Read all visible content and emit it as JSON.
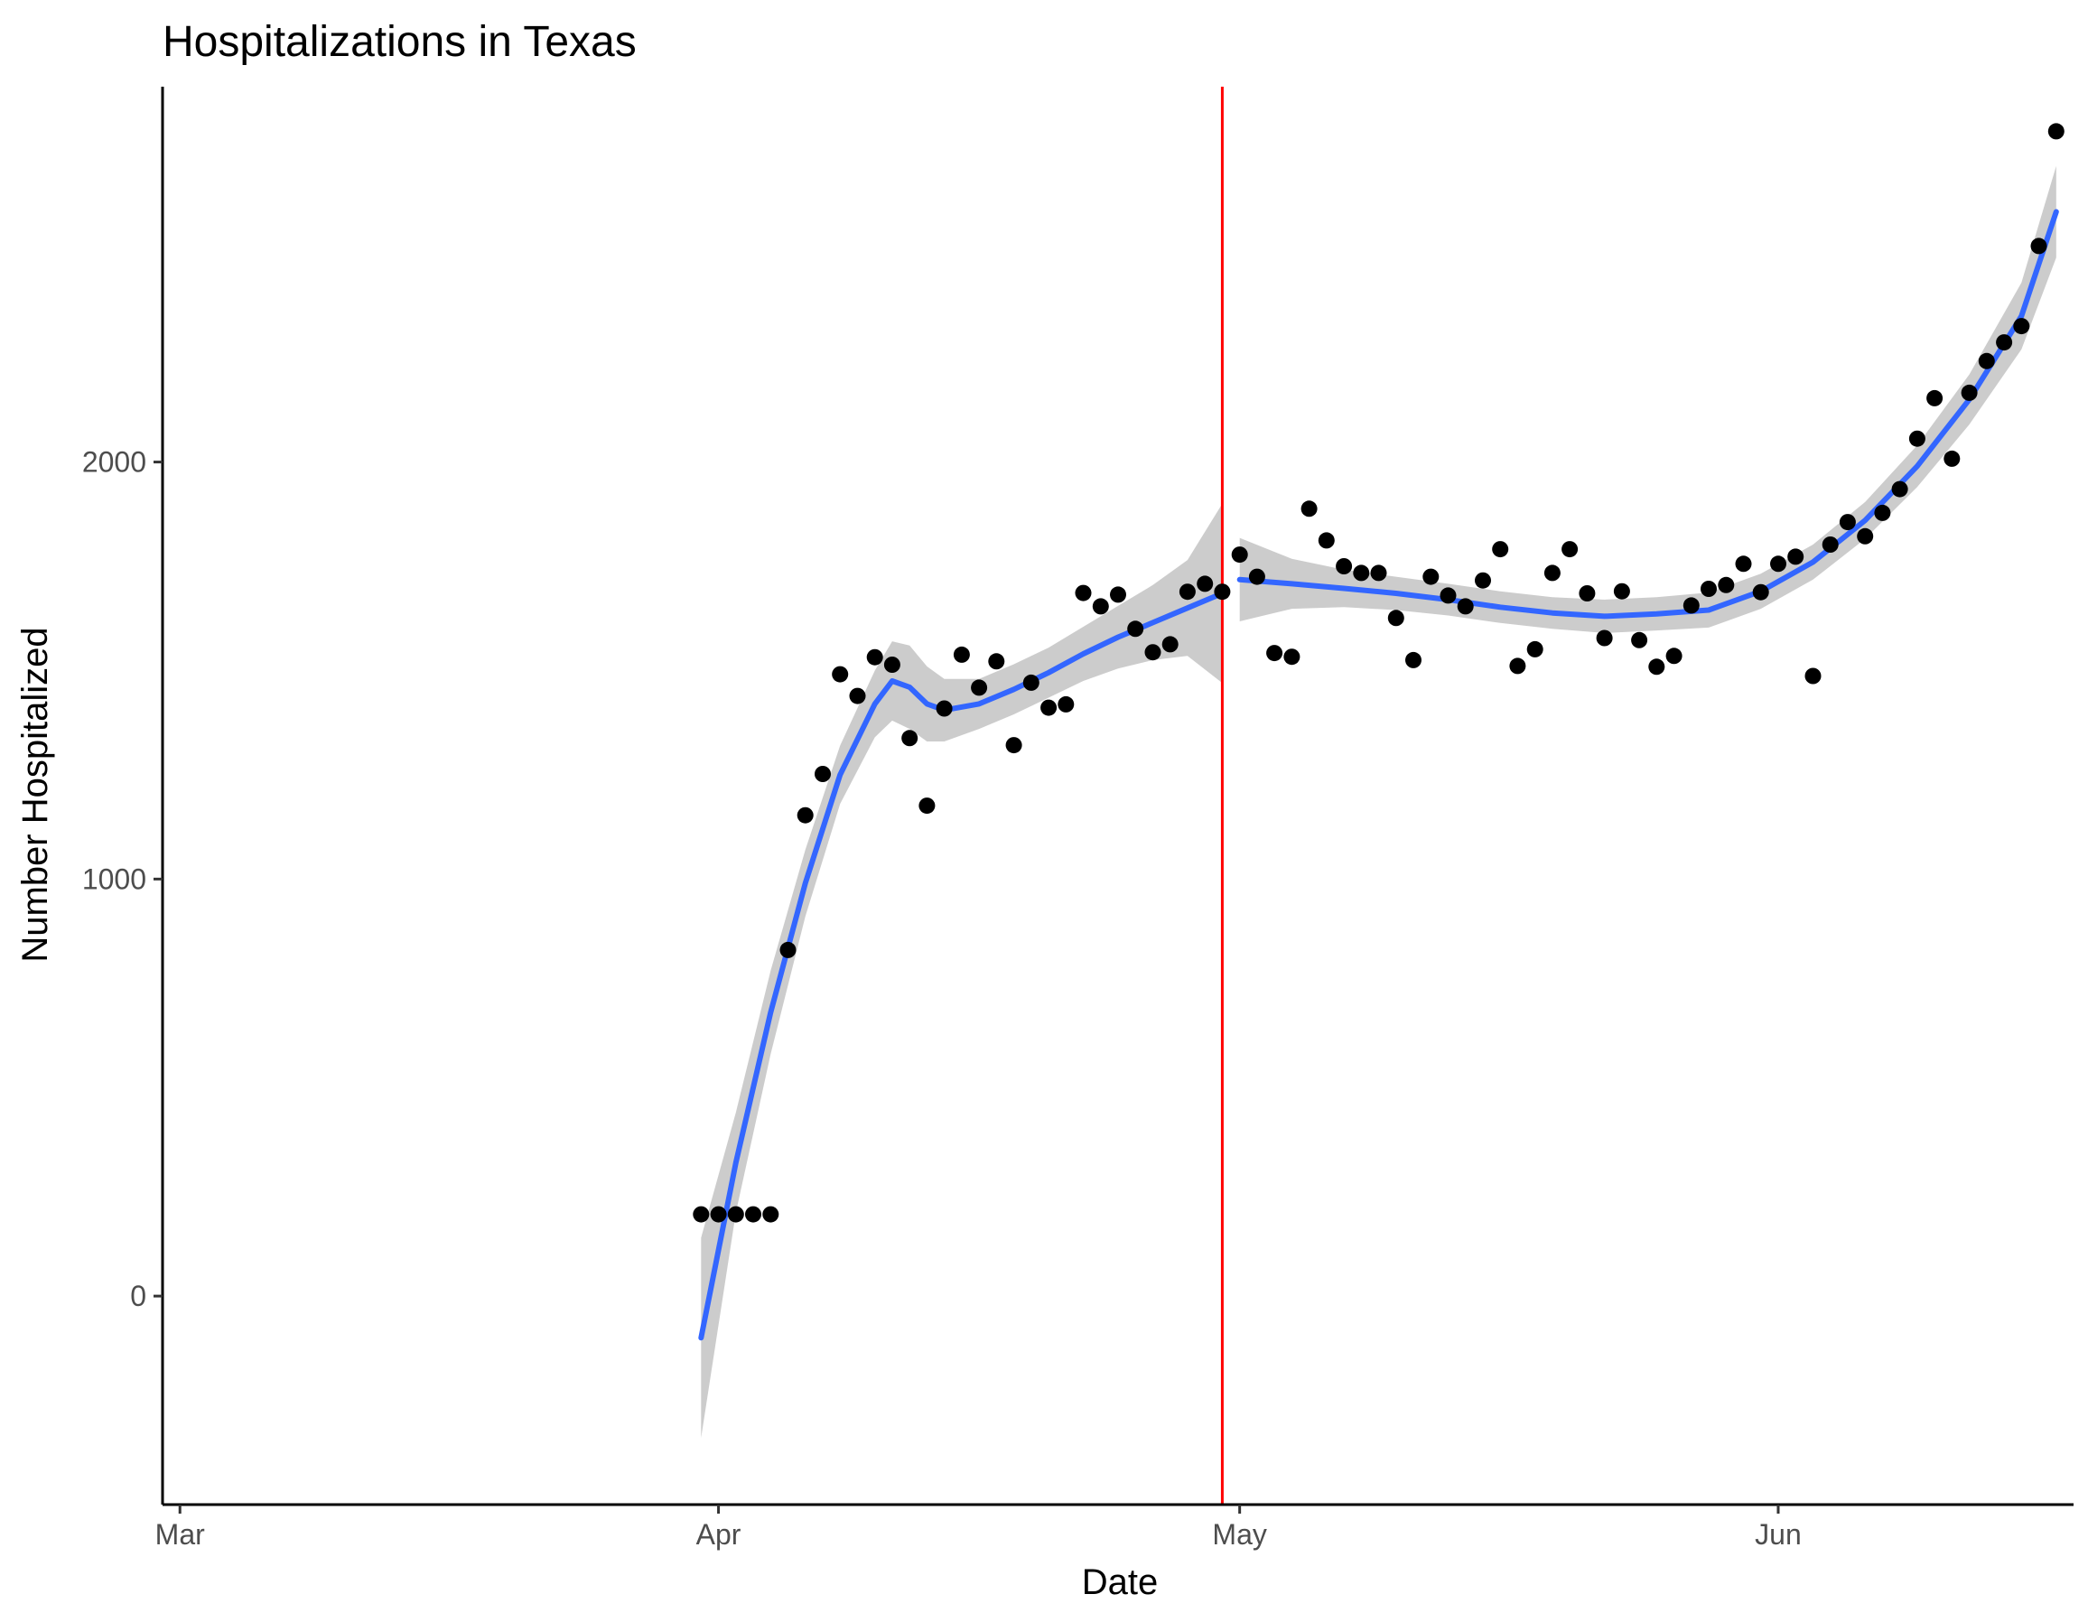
{
  "chart_data": {
    "type": "scatter",
    "title": "Hospitalizations in Texas",
    "xlabel": "Date",
    "ylabel": "Number Hospitalized",
    "x_scale": "date",
    "xlim": [
      "2020-02-29",
      "2020-06-18"
    ],
    "ylim": [
      -500,
      2900
    ],
    "x_ticks": [
      {
        "label": "Mar",
        "value": "2020-03-01"
      },
      {
        "label": "Apr",
        "value": "2020-04-01"
      },
      {
        "label": "May",
        "value": "2020-05-01"
      },
      {
        "label": "Jun",
        "value": "2020-06-01"
      }
    ],
    "y_ticks": [
      0,
      1000,
      2000
    ],
    "grid": false,
    "reference_line": {
      "type": "vertical",
      "x": "2020-04-30",
      "color": "#ff0000"
    },
    "colors": {
      "points": "#000000",
      "smooth": "#3366ff",
      "band": "#cccccc",
      "reference": "#ff0000",
      "axis": "#000000"
    },
    "series": [
      {
        "role": "points",
        "points": [
          {
            "x": "2020-03-31",
            "y": 196
          },
          {
            "x": "2020-04-01",
            "y": 196
          },
          {
            "x": "2020-04-02",
            "y": 196
          },
          {
            "x": "2020-04-03",
            "y": 196
          },
          {
            "x": "2020-04-04",
            "y": 196
          },
          {
            "x": "2020-04-05",
            "y": 830
          },
          {
            "x": "2020-04-06",
            "y": 1153
          },
          {
            "x": "2020-04-07",
            "y": 1252
          },
          {
            "x": "2020-04-08",
            "y": 1491
          },
          {
            "x": "2020-04-09",
            "y": 1439
          },
          {
            "x": "2020-04-10",
            "y": 1532
          },
          {
            "x": "2020-04-11",
            "y": 1514
          },
          {
            "x": "2020-04-12",
            "y": 1338
          },
          {
            "x": "2020-04-13",
            "y": 1176
          },
          {
            "x": "2020-04-14",
            "y": 1409
          },
          {
            "x": "2020-04-15",
            "y": 1538
          },
          {
            "x": "2020-04-16",
            "y": 1459
          },
          {
            "x": "2020-04-17",
            "y": 1522
          },
          {
            "x": "2020-04-18",
            "y": 1321
          },
          {
            "x": "2020-04-19",
            "y": 1471
          },
          {
            "x": "2020-04-20",
            "y": 1411
          },
          {
            "x": "2020-04-21",
            "y": 1419
          },
          {
            "x": "2020-04-22",
            "y": 1686
          },
          {
            "x": "2020-04-23",
            "y": 1654
          },
          {
            "x": "2020-04-24",
            "y": 1682
          },
          {
            "x": "2020-04-25",
            "y": 1600
          },
          {
            "x": "2020-04-26",
            "y": 1544
          },
          {
            "x": "2020-04-27",
            "y": 1563
          },
          {
            "x": "2020-04-28",
            "y": 1689
          },
          {
            "x": "2020-04-29",
            "y": 1708
          },
          {
            "x": "2020-04-30",
            "y": 1689
          },
          {
            "x": "2020-05-01",
            "y": 1778
          },
          {
            "x": "2020-05-02",
            "y": 1725
          },
          {
            "x": "2020-05-03",
            "y": 1542
          },
          {
            "x": "2020-05-04",
            "y": 1533
          },
          {
            "x": "2020-05-05",
            "y": 1888
          },
          {
            "x": "2020-05-06",
            "y": 1812
          },
          {
            "x": "2020-05-07",
            "y": 1750
          },
          {
            "x": "2020-05-08",
            "y": 1734
          },
          {
            "x": "2020-05-09",
            "y": 1734
          },
          {
            "x": "2020-05-10",
            "y": 1626
          },
          {
            "x": "2020-05-11",
            "y": 1525
          },
          {
            "x": "2020-05-12",
            "y": 1725
          },
          {
            "x": "2020-05-13",
            "y": 1680
          },
          {
            "x": "2020-05-14",
            "y": 1654
          },
          {
            "x": "2020-05-15",
            "y": 1716
          },
          {
            "x": "2020-05-16",
            "y": 1791
          },
          {
            "x": "2020-05-17",
            "y": 1511
          },
          {
            "x": "2020-05-18",
            "y": 1551
          },
          {
            "x": "2020-05-19",
            "y": 1734
          },
          {
            "x": "2020-05-20",
            "y": 1791
          },
          {
            "x": "2020-05-21",
            "y": 1685
          },
          {
            "x": "2020-05-22",
            "y": 1578
          },
          {
            "x": "2020-05-23",
            "y": 1690
          },
          {
            "x": "2020-05-24",
            "y": 1573
          },
          {
            "x": "2020-05-25",
            "y": 1509
          },
          {
            "x": "2020-05-26",
            "y": 1535
          },
          {
            "x": "2020-05-27",
            "y": 1656
          },
          {
            "x": "2020-05-28",
            "y": 1696
          },
          {
            "x": "2020-05-29",
            "y": 1705
          },
          {
            "x": "2020-05-30",
            "y": 1756
          },
          {
            "x": "2020-05-31",
            "y": 1688
          },
          {
            "x": "2020-06-01",
            "y": 1756
          },
          {
            "x": "2020-06-02",
            "y": 1773
          },
          {
            "x": "2020-06-03",
            "y": 1487
          },
          {
            "x": "2020-06-04",
            "y": 1802
          },
          {
            "x": "2020-06-05",
            "y": 1856
          },
          {
            "x": "2020-06-06",
            "y": 1822
          },
          {
            "x": "2020-06-07",
            "y": 1878
          },
          {
            "x": "2020-06-08",
            "y": 1935
          },
          {
            "x": "2020-06-09",
            "y": 2056
          },
          {
            "x": "2020-06-10",
            "y": 2153
          },
          {
            "x": "2020-06-11",
            "y": 2008
          },
          {
            "x": "2020-06-12",
            "y": 2166
          },
          {
            "x": "2020-06-13",
            "y": 2242
          },
          {
            "x": "2020-06-14",
            "y": 2287
          },
          {
            "x": "2020-06-15",
            "y": 2326
          },
          {
            "x": "2020-06-16",
            "y": 2518
          },
          {
            "x": "2020-06-17",
            "y": 2793
          }
        ]
      },
      {
        "role": "smooth",
        "segment": "before",
        "points": [
          {
            "x": "2020-03-31",
            "y": -100,
            "lo": -340,
            "hi": 140
          },
          {
            "x": "2020-04-02",
            "y": 320,
            "lo": 200,
            "hi": 440
          },
          {
            "x": "2020-04-04",
            "y": 680,
            "lo": 580,
            "hi": 780
          },
          {
            "x": "2020-04-06",
            "y": 990,
            "lo": 910,
            "hi": 1070
          },
          {
            "x": "2020-04-08",
            "y": 1250,
            "lo": 1180,
            "hi": 1320
          },
          {
            "x": "2020-04-10",
            "y": 1420,
            "lo": 1340,
            "hi": 1500
          },
          {
            "x": "2020-04-11",
            "y": 1475,
            "lo": 1380,
            "hi": 1570
          },
          {
            "x": "2020-04-12",
            "y": 1460,
            "lo": 1360,
            "hi": 1560
          },
          {
            "x": "2020-04-13",
            "y": 1420,
            "lo": 1330,
            "hi": 1510
          },
          {
            "x": "2020-04-14",
            "y": 1405,
            "lo": 1330,
            "hi": 1480
          },
          {
            "x": "2020-04-16",
            "y": 1420,
            "lo": 1360,
            "hi": 1480
          },
          {
            "x": "2020-04-18",
            "y": 1455,
            "lo": 1395,
            "hi": 1515
          },
          {
            "x": "2020-04-20",
            "y": 1495,
            "lo": 1435,
            "hi": 1555
          },
          {
            "x": "2020-04-22",
            "y": 1540,
            "lo": 1475,
            "hi": 1605
          },
          {
            "x": "2020-04-24",
            "y": 1580,
            "lo": 1505,
            "hi": 1655
          },
          {
            "x": "2020-04-26",
            "y": 1615,
            "lo": 1525,
            "hi": 1705
          },
          {
            "x": "2020-04-28",
            "y": 1650,
            "lo": 1535,
            "hi": 1765
          },
          {
            "x": "2020-04-30",
            "y": 1685,
            "lo": 1470,
            "hi": 1900
          }
        ]
      },
      {
        "role": "smooth",
        "segment": "after",
        "points": [
          {
            "x": "2020-05-01",
            "y": 1718,
            "lo": 1618,
            "hi": 1818
          },
          {
            "x": "2020-05-04",
            "y": 1708,
            "lo": 1648,
            "hi": 1768
          },
          {
            "x": "2020-05-07",
            "y": 1697,
            "lo": 1652,
            "hi": 1742
          },
          {
            "x": "2020-05-10",
            "y": 1685,
            "lo": 1645,
            "hi": 1725
          },
          {
            "x": "2020-05-13",
            "y": 1670,
            "lo": 1632,
            "hi": 1708
          },
          {
            "x": "2020-05-16",
            "y": 1652,
            "lo": 1614,
            "hi": 1690
          },
          {
            "x": "2020-05-19",
            "y": 1638,
            "lo": 1600,
            "hi": 1676
          },
          {
            "x": "2020-05-22",
            "y": 1630,
            "lo": 1590,
            "hi": 1670
          },
          {
            "x": "2020-05-25",
            "y": 1636,
            "lo": 1596,
            "hi": 1676
          },
          {
            "x": "2020-05-28",
            "y": 1645,
            "lo": 1603,
            "hi": 1687
          },
          {
            "x": "2020-05-31",
            "y": 1690,
            "lo": 1648,
            "hi": 1732
          },
          {
            "x": "2020-06-03",
            "y": 1760,
            "lo": 1718,
            "hi": 1802
          },
          {
            "x": "2020-06-06",
            "y": 1860,
            "lo": 1816,
            "hi": 1904
          },
          {
            "x": "2020-06-09",
            "y": 1990,
            "lo": 1940,
            "hi": 2040
          },
          {
            "x": "2020-06-12",
            "y": 2150,
            "lo": 2090,
            "hi": 2210
          },
          {
            "x": "2020-06-15",
            "y": 2350,
            "lo": 2270,
            "hi": 2430
          },
          {
            "x": "2020-06-17",
            "y": 2600,
            "lo": 2490,
            "hi": 2710
          }
        ]
      }
    ]
  }
}
